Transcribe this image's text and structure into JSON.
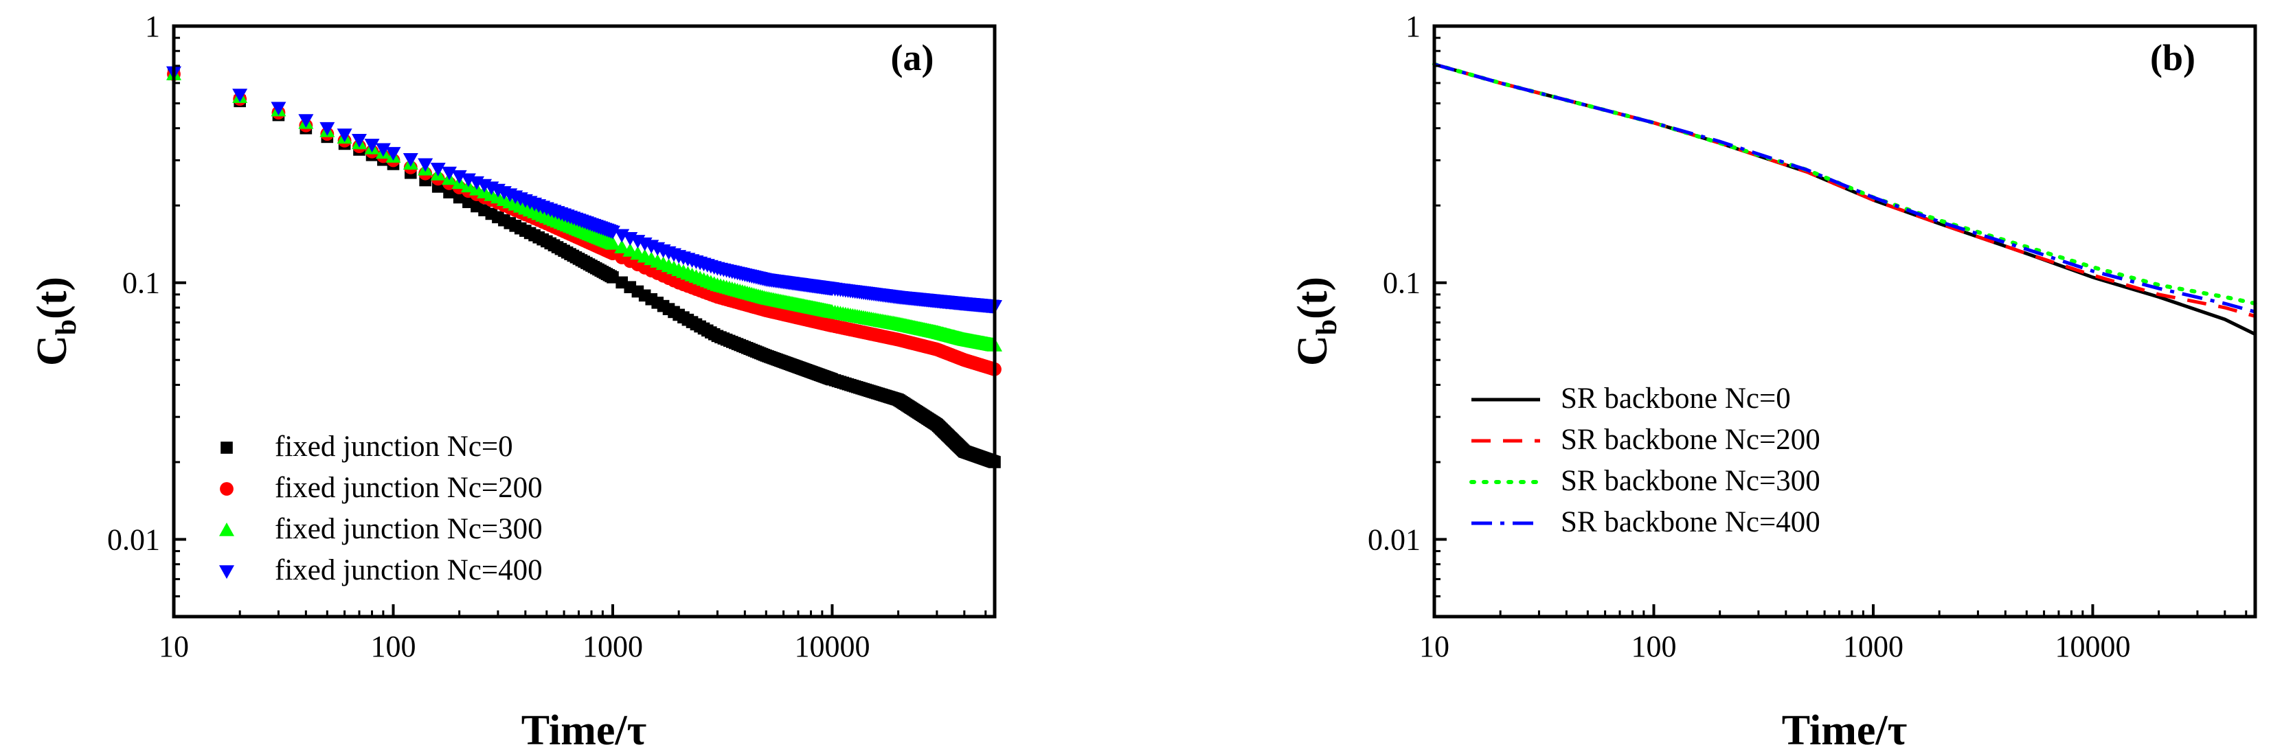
{
  "chart_data": [
    {
      "type": "scatter",
      "panel_label": "(a)",
      "xlabel": "Time/τ",
      "ylabel": "C_b(t)",
      "ylabel_main": "C",
      "ylabel_sub": "b",
      "ylabel_rest": "(t)",
      "xscale": "log",
      "yscale": "log",
      "xlim": [
        10,
        55000
      ],
      "ylim": [
        0.005,
        1
      ],
      "xticks": [
        {
          "value": 10,
          "label": "10"
        },
        {
          "value": 100,
          "label": "100"
        },
        {
          "value": 1000,
          "label": "1000"
        },
        {
          "value": 10000,
          "label": "10000"
        }
      ],
      "yticks": [
        {
          "value": 0.01,
          "label": "0.01"
        },
        {
          "value": 0.1,
          "label": "0.1"
        },
        {
          "value": 1,
          "label": "1"
        }
      ],
      "legend_position": "bottom-left",
      "series": [
        {
          "name": "fixed junction Nc=0",
          "color": "#000000",
          "marker": "square",
          "x": [
            10,
            20,
            30,
            40,
            50,
            70,
            100,
            200,
            300,
            500,
            1000,
            2000,
            3000,
            5000,
            10000,
            20000,
            30000,
            40000,
            55000
          ],
          "y": [
            0.65,
            0.51,
            0.45,
            0.4,
            0.37,
            0.33,
            0.29,
            0.215,
            0.18,
            0.145,
            0.105,
            0.075,
            0.062,
            0.052,
            0.042,
            0.035,
            0.028,
            0.022,
            0.02
          ]
        },
        {
          "name": "fixed junction Nc=200",
          "color": "#ff0000",
          "marker": "circle",
          "x": [
            10,
            20,
            30,
            40,
            50,
            70,
            100,
            200,
            300,
            500,
            1000,
            2000,
            3000,
            5000,
            10000,
            20000,
            30000,
            40000,
            55000
          ],
          "y": [
            0.65,
            0.52,
            0.46,
            0.41,
            0.38,
            0.34,
            0.3,
            0.235,
            0.205,
            0.17,
            0.13,
            0.1,
            0.088,
            0.078,
            0.068,
            0.06,
            0.055,
            0.05,
            0.046
          ]
        },
        {
          "name": "fixed junction Nc=300",
          "color": "#00ff00",
          "marker": "triangle-up",
          "x": [
            10,
            20,
            30,
            40,
            50,
            70,
            100,
            200,
            300,
            500,
            1000,
            2000,
            3000,
            5000,
            10000,
            20000,
            30000,
            40000,
            55000
          ],
          "y": [
            0.65,
            0.53,
            0.47,
            0.42,
            0.39,
            0.35,
            0.31,
            0.245,
            0.215,
            0.18,
            0.142,
            0.112,
            0.098,
            0.087,
            0.077,
            0.069,
            0.064,
            0.06,
            0.057
          ]
        },
        {
          "name": "fixed junction Nc=400",
          "color": "#0000ff",
          "marker": "triangle-down",
          "x": [
            10,
            20,
            30,
            40,
            50,
            70,
            100,
            200,
            300,
            500,
            1000,
            2000,
            3000,
            5000,
            10000,
            20000,
            30000,
            40000,
            55000
          ],
          "y": [
            0.66,
            0.54,
            0.48,
            0.43,
            0.4,
            0.36,
            0.32,
            0.26,
            0.23,
            0.195,
            0.158,
            0.127,
            0.114,
            0.103,
            0.095,
            0.088,
            0.085,
            0.083,
            0.081
          ]
        }
      ]
    },
    {
      "type": "line",
      "panel_label": "(b)",
      "xlabel": "Time/τ",
      "ylabel": "C_b(t)",
      "ylabel_main": "C",
      "ylabel_sub": "b",
      "ylabel_rest": "(t)",
      "xscale": "log",
      "yscale": "log",
      "xlim": [
        10,
        55000
      ],
      "ylim": [
        0.005,
        1
      ],
      "xticks": [
        {
          "value": 10,
          "label": "10"
        },
        {
          "value": 100,
          "label": "100"
        },
        {
          "value": 1000,
          "label": "1000"
        },
        {
          "value": 10000,
          "label": "10000"
        }
      ],
      "yticks": [
        {
          "value": 0.01,
          "label": "0.01"
        },
        {
          "value": 0.1,
          "label": "0.1"
        },
        {
          "value": 1,
          "label": "1"
        }
      ],
      "legend_position": "bottom-left",
      "series": [
        {
          "name": "SR backbone Nc=0",
          "color": "#000000",
          "dash": "solid",
          "x": [
            10,
            20,
            50,
            100,
            200,
            500,
            1000,
            2000,
            5000,
            10000,
            20000,
            40000,
            55000
          ],
          "y": [
            0.71,
            0.6,
            0.49,
            0.42,
            0.35,
            0.27,
            0.21,
            0.17,
            0.13,
            0.105,
            0.088,
            0.072,
            0.063
          ]
        },
        {
          "name": "SR backbone Nc=200",
          "color": "#ff0000",
          "dash": "dashed",
          "x": [
            10,
            20,
            50,
            100,
            200,
            500,
            1000,
            2000,
            5000,
            10000,
            20000,
            40000,
            55000
          ],
          "y": [
            0.71,
            0.6,
            0.49,
            0.42,
            0.35,
            0.27,
            0.21,
            0.17,
            0.13,
            0.107,
            0.09,
            0.08,
            0.074
          ]
        },
        {
          "name": "SR backbone Nc=300",
          "color": "#00ff00",
          "dash": "dotted",
          "x": [
            10,
            20,
            50,
            100,
            200,
            500,
            1000,
            2000,
            5000,
            10000,
            20000,
            40000,
            55000
          ],
          "y": [
            0.71,
            0.6,
            0.49,
            0.42,
            0.35,
            0.275,
            0.215,
            0.175,
            0.138,
            0.115,
            0.098,
            0.088,
            0.083
          ]
        },
        {
          "name": "SR backbone Nc=400",
          "color": "#0000ff",
          "dash": "dash-dot",
          "x": [
            10,
            20,
            50,
            100,
            200,
            500,
            1000,
            2000,
            5000,
            10000,
            20000,
            40000,
            55000
          ],
          "y": [
            0.71,
            0.6,
            0.49,
            0.42,
            0.355,
            0.275,
            0.215,
            0.173,
            0.135,
            0.111,
            0.095,
            0.083,
            0.077
          ]
        }
      ]
    }
  ]
}
